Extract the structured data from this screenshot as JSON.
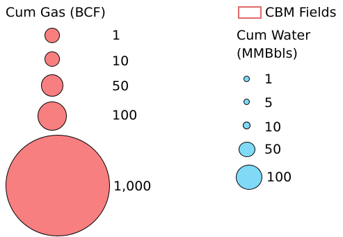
{
  "gas_legend": {
    "title": "Cum Gas (BCF)",
    "color": "#f87f7f",
    "items": [
      {
        "label": "1",
        "icon": "gas-bubble-icon"
      },
      {
        "label": "10",
        "icon": "gas-bubble-icon"
      },
      {
        "label": "50",
        "icon": "gas-bubble-icon"
      },
      {
        "label": "100",
        "icon": "gas-bubble-icon"
      },
      {
        "label": "1,000",
        "icon": "gas-bubble-icon"
      }
    ]
  },
  "cbm_fields": {
    "label": "CBM Fields",
    "border_color": "#e06a6a",
    "icon": "cbm-field-swatch-icon"
  },
  "water_legend": {
    "title_line1": "Cum Water",
    "title_line2": "(MMBbls)",
    "color": "#7fd9f7",
    "items": [
      {
        "label": "1",
        "icon": "water-bubble-icon"
      },
      {
        "label": "5",
        "icon": "water-bubble-icon"
      },
      {
        "label": "10",
        "icon": "water-bubble-icon"
      },
      {
        "label": "50",
        "icon": "water-bubble-icon"
      },
      {
        "label": "100",
        "icon": "water-bubble-icon"
      }
    ]
  }
}
